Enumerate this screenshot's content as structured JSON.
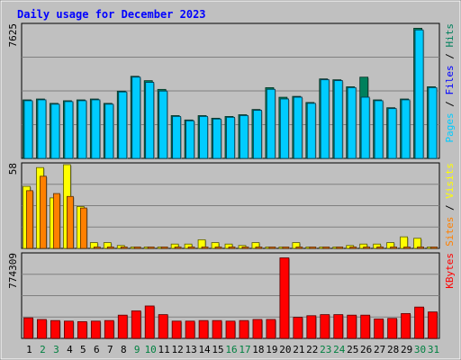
{
  "chart_data": {
    "type": "bar",
    "title": "Daily usage for December 2023",
    "categories": [
      "1",
      "2",
      "3",
      "4",
      "5",
      "6",
      "7",
      "8",
      "9",
      "10",
      "11",
      "12",
      "13",
      "14",
      "15",
      "16",
      "17",
      "18",
      "19",
      "20",
      "21",
      "22",
      "23",
      "24",
      "25",
      "26",
      "27",
      "28",
      "29",
      "30",
      "31"
    ],
    "weekend_days": [
      "2",
      "3",
      "9",
      "10",
      "16",
      "17",
      "23",
      "24",
      "30",
      "31"
    ],
    "panels": [
      {
        "id": "hits-files-pages",
        "ymax_label": "7625",
        "ylim": [
          0,
          7625
        ],
        "series": [
          {
            "name": "Hits",
            "color": "#00805c",
            "values": [
              3350,
              3400,
              3150,
              3300,
              3350,
              3400,
              3150,
              3850,
              4700,
              4450,
              3950,
              2450,
              2200,
              2450,
              2300,
              2400,
              2500,
              2800,
              4050,
              3500,
              3550,
              3200,
              4550,
              4500,
              4100,
              4650,
              3350,
              2900,
              3400,
              7450,
              4100
            ]
          },
          {
            "name": "Files",
            "color": "#0000ff",
            "values": [
              3300,
              3350,
              3100,
              3250,
              3300,
              3350,
              3100,
              3800,
              4650,
              4350,
              3850,
              2400,
              2150,
              2400,
              2250,
              2350,
              2450,
              2750,
              3950,
              3400,
              3500,
              3150,
              4500,
              4450,
              4050,
              3500,
              3300,
              2850,
              3350,
              7350,
              4050
            ]
          },
          {
            "name": "Pages",
            "color": "#00ccff",
            "values": [
              3300,
              3350,
              3100,
              3250,
              3300,
              3350,
              3100,
              3800,
              4650,
              4350,
              3850,
              2400,
              2150,
              2400,
              2250,
              2350,
              2450,
              2750,
              3950,
              3400,
              3500,
              3150,
              4500,
              4450,
              4050,
              3500,
              3300,
              2850,
              3350,
              7350,
              4050
            ]
          }
        ],
        "side_labels": [
          {
            "text": "Pages",
            "color": "#00ccff"
          },
          {
            "text": " / ",
            "color": "#000000"
          },
          {
            "text": "Files",
            "color": "#0000ff"
          },
          {
            "text": " / ",
            "color": "#000000"
          },
          {
            "text": "Hits",
            "color": "#00805c"
          }
        ]
      },
      {
        "id": "visits-sites",
        "ymax_label": "58",
        "ylim": [
          0,
          58
        ],
        "series": [
          {
            "name": "Visits",
            "color": "#ffff00",
            "values": [
              43,
              56,
              35,
              58,
              29,
              4,
              4,
              2,
              1,
              1,
              1,
              3,
              3,
              6,
              4,
              3,
              2,
              4,
              1,
              1,
              4,
              1,
              1,
              1,
              2,
              3,
              3,
              4,
              8,
              7,
              1
            ]
          },
          {
            "name": "Sites",
            "color": "#ff8000",
            "values": [
              40,
              50,
              38,
              36,
              28,
              1,
              1,
              1,
              1,
              1,
              1,
              1,
              1,
              1,
              1,
              1,
              1,
              1,
              1,
              1,
              1,
              1,
              1,
              1,
              1,
              1,
              1,
              1,
              1,
              1,
              1
            ]
          }
        ],
        "side_labels": [
          {
            "text": "Sites",
            "color": "#ff8000"
          },
          {
            "text": " / ",
            "color": "#000000"
          },
          {
            "text": "Visits",
            "color": "#ffff00"
          }
        ]
      },
      {
        "id": "kbytes",
        "ymax_label": "774309",
        "ylim": [
          0,
          774309
        ],
        "series": [
          {
            "name": "KBytes",
            "color": "#ff0000",
            "values": [
              190000,
              175000,
              165000,
              160000,
              155000,
              160000,
              165000,
              215000,
              255000,
              300000,
              220000,
              160000,
              160000,
              165000,
              165000,
              160000,
              165000,
              175000,
              175000,
              745000,
              195000,
              210000,
              220000,
              220000,
              215000,
              215000,
              180000,
              185000,
              230000,
              290000,
              245000
            ]
          }
        ],
        "side_labels": [
          {
            "text": "KBytes",
            "color": "#ff0000"
          }
        ]
      }
    ],
    "colors": {
      "background": "#c0c0c0",
      "plot_background": "#c0c0c0",
      "grid": "#808080",
      "title": "#0000ff",
      "weekday_label": "#000000",
      "weekend_label": "#008040"
    }
  }
}
